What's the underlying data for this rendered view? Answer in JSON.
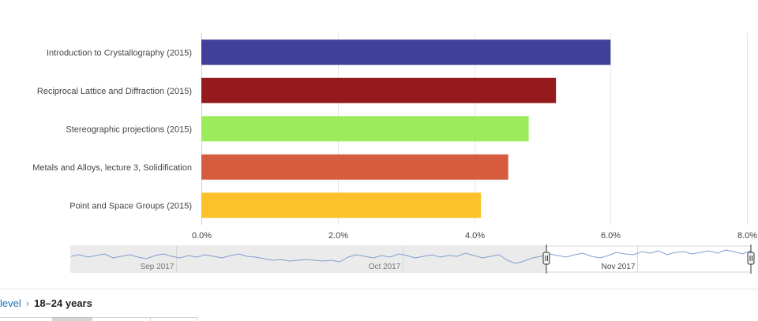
{
  "chart_data": {
    "type": "bar",
    "orientation": "horizontal",
    "categories": [
      "Introduction to Crystallography (2015)",
      "Reciprocal Lattice and Diffraction (2015)",
      "Stereographic projections (2015)",
      "Metals and Alloys, lecture 3, Solidification",
      "Point and Space Groups (2015)"
    ],
    "values": [
      6.0,
      5.2,
      4.8,
      4.5,
      4.1
    ],
    "colors": [
      "#403f99",
      "#941a1d",
      "#9ceb5b",
      "#d65c3f",
      "#fdc22a"
    ],
    "xlim": [
      0,
      8
    ],
    "xticks": [
      "0.0%",
      "2.0%",
      "4.0%",
      "6.0%",
      "8.0%"
    ],
    "grid": true,
    "legend": "none"
  },
  "navigator": {
    "months": [
      "Sep 2017",
      "Oct 2017",
      "Nov 2017"
    ],
    "selected_range": [
      "Nov 2017",
      "Nov 2017"
    ],
    "line_color": "#7f9fce"
  },
  "breadcrumb": {
    "parent": "level",
    "separator": "›",
    "current": "18–24 years"
  }
}
